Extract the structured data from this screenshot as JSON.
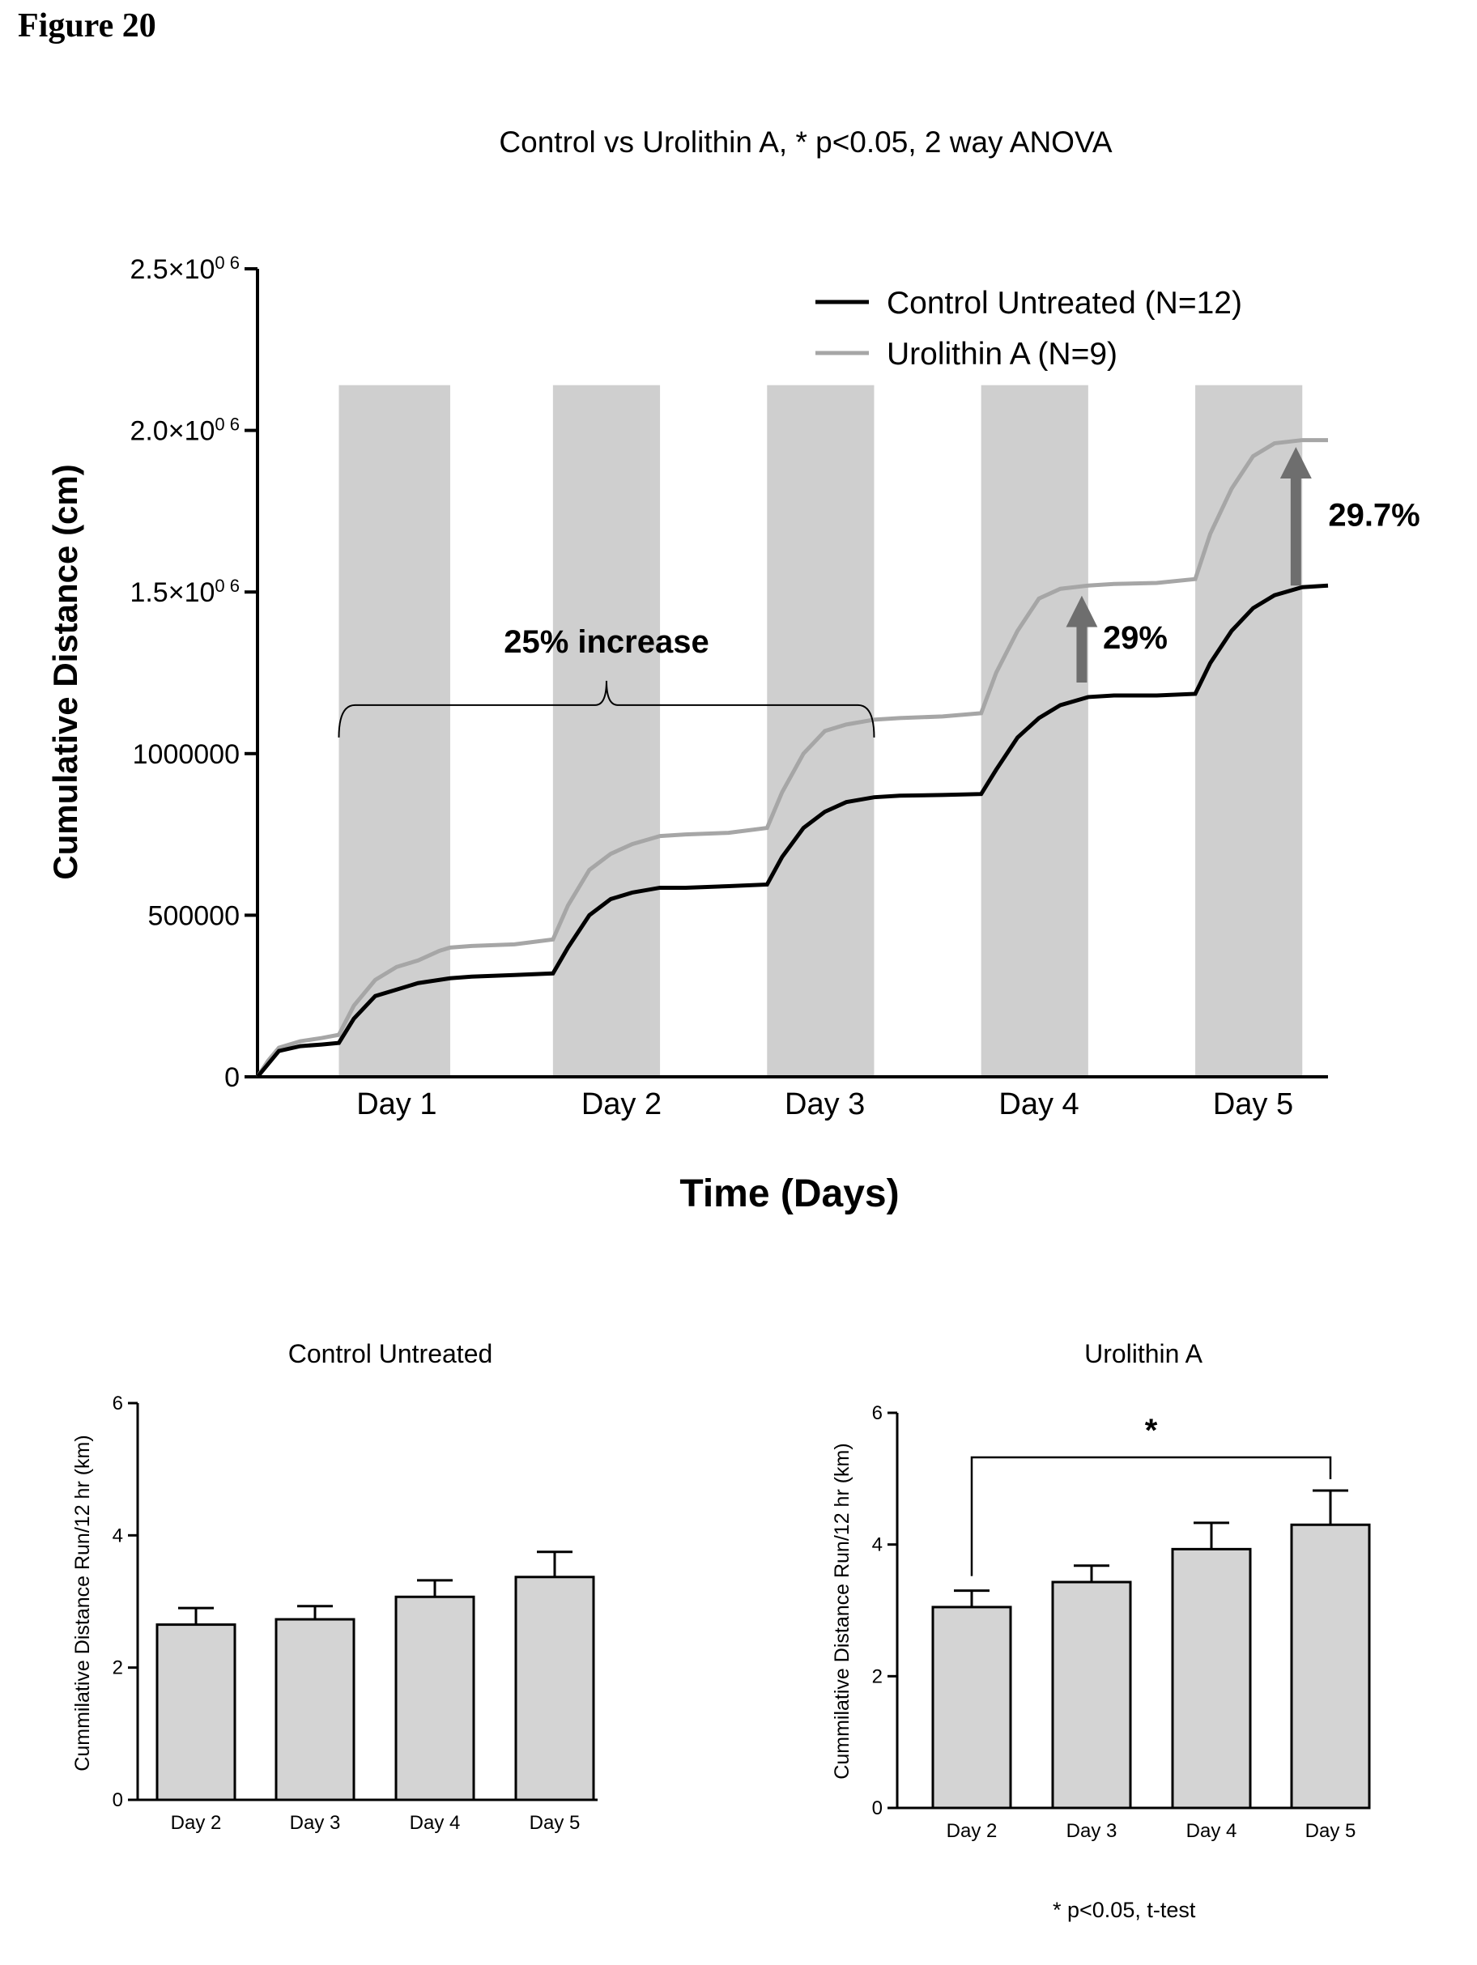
{
  "figure_label": "Figure 20",
  "footnote": "* p<0.05, t-test",
  "colors": {
    "control": "#000000",
    "urolithin": "#a6a6a6",
    "dark_band": "#cfcfcf",
    "bar_fill": "#d4d4d4",
    "arrow": "#6e6e6e"
  },
  "chart_data": [
    {
      "type": "line",
      "title": "Control vs Urolithin A, * p<0.05, 2 way ANOVA",
      "xlabel": "Time (Days)",
      "ylabel": "Cumulative Distance (cm)",
      "ylim": [
        0,
        2500000
      ],
      "xlim": [
        0,
        5
      ],
      "x_tick_labels": [
        "Day 1",
        "Day 2",
        "Day 3",
        "Day 4",
        "Day 5"
      ],
      "x_tick_positions": [
        0.65,
        1.7,
        2.65,
        3.65,
        4.65
      ],
      "y_tick_labels": [
        {
          "base": "0",
          "sup": ""
        },
        {
          "base": "500000",
          "sup": ""
        },
        {
          "base": "1000000",
          "sup": ""
        },
        {
          "base": "1.5×10",
          "sup": "0 6"
        },
        {
          "base": "2.0×10",
          "sup": "0 6"
        },
        {
          "base": "2.5×10",
          "sup": "0 6"
        }
      ],
      "y_tick_values": [
        0,
        500000,
        1000000,
        1500000,
        2000000,
        2500000
      ],
      "legend_position": "top-right",
      "dark_periods": [
        [
          0.38,
          0.9
        ],
        [
          1.38,
          1.88
        ],
        [
          2.38,
          2.88
        ],
        [
          3.38,
          3.88
        ],
        [
          4.38,
          4.88
        ]
      ],
      "series": [
        {
          "name": "Control Untreated (N=12)",
          "x": [
            0,
            0.05,
            0.1,
            0.2,
            0.3,
            0.38,
            0.45,
            0.55,
            0.65,
            0.75,
            0.85,
            0.9,
            1.0,
            1.2,
            1.38,
            1.45,
            1.55,
            1.65,
            1.75,
            1.88,
            2.0,
            2.2,
            2.38,
            2.45,
            2.55,
            2.65,
            2.75,
            2.88,
            3.0,
            3.2,
            3.38,
            3.45,
            3.55,
            3.65,
            3.75,
            3.88,
            4.0,
            4.2,
            4.38,
            4.45,
            4.55,
            4.65,
            4.75,
            4.88,
            5.0
          ],
          "y": [
            0,
            40000,
            80000,
            95000,
            100000,
            105000,
            180000,
            250000,
            270000,
            290000,
            300000,
            305000,
            310000,
            315000,
            320000,
            400000,
            500000,
            550000,
            570000,
            585000,
            585000,
            590000,
            595000,
            680000,
            770000,
            820000,
            850000,
            865000,
            870000,
            872000,
            875000,
            950000,
            1050000,
            1110000,
            1150000,
            1175000,
            1180000,
            1180000,
            1185000,
            1280000,
            1380000,
            1450000,
            1490000,
            1515000,
            1520000
          ]
        },
        {
          "name": "Urolithin A (N=9)",
          "x": [
            0,
            0.05,
            0.1,
            0.2,
            0.3,
            0.38,
            0.45,
            0.55,
            0.65,
            0.75,
            0.85,
            0.9,
            1.0,
            1.2,
            1.38,
            1.45,
            1.55,
            1.65,
            1.75,
            1.88,
            2.0,
            2.2,
            2.38,
            2.45,
            2.55,
            2.65,
            2.75,
            2.88,
            3.0,
            3.2,
            3.38,
            3.45,
            3.55,
            3.65,
            3.75,
            3.88,
            4.0,
            4.2,
            4.38,
            4.45,
            4.55,
            4.65,
            4.75,
            4.88,
            5.0
          ],
          "y": [
            0,
            50000,
            90000,
            110000,
            120000,
            130000,
            220000,
            300000,
            340000,
            360000,
            390000,
            400000,
            405000,
            410000,
            425000,
            530000,
            640000,
            690000,
            720000,
            745000,
            750000,
            755000,
            770000,
            880000,
            1000000,
            1070000,
            1090000,
            1105000,
            1110000,
            1115000,
            1125000,
            1250000,
            1380000,
            1480000,
            1510000,
            1520000,
            1525000,
            1528000,
            1540000,
            1680000,
            1820000,
            1920000,
            1960000,
            1970000,
            1970000
          ]
        }
      ],
      "annotations": [
        {
          "text": "25% increase",
          "type": "brace",
          "x_start": 0.38,
          "x_end": 2.88,
          "y": 1150000
        },
        {
          "text": "29%",
          "type": "arrow",
          "x": 3.85,
          "y_from": 1220000,
          "y_to": 1500000
        },
        {
          "text": "29.7%",
          "type": "arrow",
          "x": 4.85,
          "y_from": 1520000,
          "y_to": 1960000
        }
      ]
    },
    {
      "type": "bar",
      "title": "Control Untreated",
      "xlabel": "",
      "ylabel": "Cummilative Distance Run/12 hr (km)",
      "ylim": [
        0,
        6
      ],
      "y_ticks": [
        "0",
        "2",
        "4",
        "6"
      ],
      "y_tick_values": [
        0,
        2,
        4,
        6
      ],
      "categories": [
        "Day 2",
        "Day 3",
        "Day 4",
        "Day 5"
      ],
      "values": [
        2.65,
        2.73,
        3.07,
        3.37
      ],
      "errors": [
        0.25,
        0.2,
        0.25,
        0.38
      ]
    },
    {
      "type": "bar",
      "title": "Urolithin A",
      "xlabel": "",
      "ylabel": "Cummilative Distance Run/12 hr (km)",
      "ylim": [
        0,
        6
      ],
      "y_ticks": [
        "0",
        "2",
        "4",
        "6"
      ],
      "y_tick_values": [
        0,
        2,
        4,
        6
      ],
      "categories": [
        "Day 2",
        "Day 3",
        "Day 4",
        "Day 5"
      ],
      "values": [
        3.05,
        3.43,
        3.93,
        4.3
      ],
      "errors": [
        0.25,
        0.25,
        0.4,
        0.52
      ],
      "significance": {
        "from": "Day 2",
        "to": "Day 5",
        "label": "*"
      }
    }
  ]
}
